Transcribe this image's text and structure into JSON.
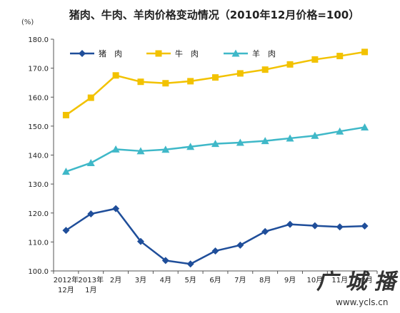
{
  "chart_data": {
    "type": "line",
    "title": "猪肉、牛肉、羊肉价格变动情况（2010年12月价格=100）",
    "unit_label": "(%)",
    "ylim": [
      100,
      180
    ],
    "yticks": [
      "100.0",
      "110.0",
      "120.0",
      "130.0",
      "140.0",
      "150.0",
      "160.0",
      "170.0",
      "180.0"
    ],
    "ytick_values": [
      100,
      110,
      120,
      130,
      140,
      150,
      160,
      170,
      180
    ],
    "categories": [
      [
        "2012年",
        "12月"
      ],
      [
        "2013年",
        "1月"
      ],
      [
        "2月"
      ],
      [
        "3月"
      ],
      [
        "4月"
      ],
      [
        "5月"
      ],
      [
        "6月"
      ],
      [
        "7月"
      ],
      [
        "8月"
      ],
      [
        "9月"
      ],
      [
        "10月"
      ],
      [
        "11月"
      ],
      [
        "12月"
      ]
    ],
    "series": [
      {
        "name": "猪　肉",
        "color": "#1f4e9a",
        "marker": "diamond",
        "values": [
          114.0,
          119.7,
          121.5,
          110.2,
          103.6,
          102.4,
          106.9,
          108.9,
          113.6,
          116.1,
          115.6,
          115.2,
          115.5
        ]
      },
      {
        "name": "牛　肉",
        "color": "#f2c200",
        "marker": "square",
        "values": [
          153.8,
          159.8,
          167.5,
          165.3,
          164.8,
          165.5,
          166.8,
          168.2,
          169.5,
          171.3,
          173.0,
          174.2,
          175.6
        ]
      },
      {
        "name": "羊　肉",
        "color": "#3fb8c8",
        "marker": "triangle",
        "values": [
          134.3,
          137.3,
          142.0,
          141.4,
          141.9,
          142.9,
          143.9,
          144.3,
          144.9,
          145.8,
          146.7,
          148.2,
          149.6
        ]
      }
    ],
    "legend_position": "top-left",
    "grid": false
  },
  "watermark": {
    "text_main": "广 城 播 市",
    "url": "www.ycls.cn"
  }
}
